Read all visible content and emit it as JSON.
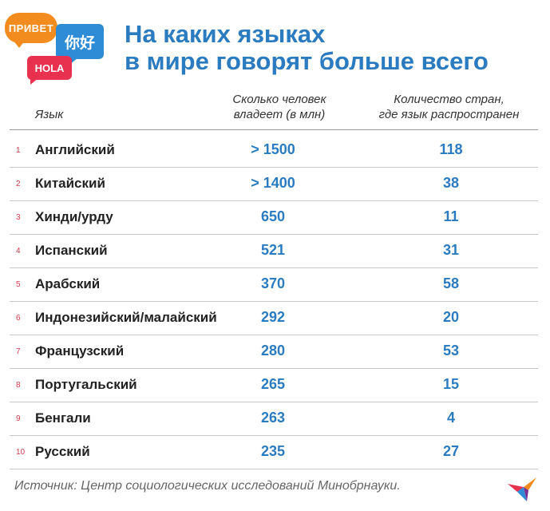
{
  "logo": {
    "privet": "ПРИВЕТ",
    "nihao": "你好",
    "hola": "HOLA"
  },
  "title_line1": "На каких языках",
  "title_line2": "в мире говорят больше всего",
  "headers": {
    "language": "Язык",
    "speakers_line1": "Сколько человек",
    "speakers_line2": "владеет (в млн)",
    "countries_line1": "Количество стран,",
    "countries_line2": "где язык распространен"
  },
  "rows": [
    {
      "rank": "1",
      "language": "Английский",
      "speakers": "> 1500",
      "countries": "118"
    },
    {
      "rank": "2",
      "language": "Китайский",
      "speakers": "> 1400",
      "countries": "38"
    },
    {
      "rank": "3",
      "language": "Хинди/урду",
      "speakers": "650",
      "countries": "11"
    },
    {
      "rank": "4",
      "language": "Испанский",
      "speakers": "521",
      "countries": "31"
    },
    {
      "rank": "5",
      "language": "Арабский",
      "speakers": "370",
      "countries": "58"
    },
    {
      "rank": "6",
      "language": "Индонезийский/малайский",
      "speakers": "292",
      "countries": "20"
    },
    {
      "rank": "7",
      "language": "Французский",
      "speakers": "280",
      "countries": "53"
    },
    {
      "rank": "8",
      "language": "Португальский",
      "speakers": "265",
      "countries": "15"
    },
    {
      "rank": "9",
      "language": "Бенгали",
      "speakers": "263",
      "countries": "4"
    },
    {
      "rank": "10",
      "language": "Русский",
      "speakers": "235",
      "countries": "27"
    }
  ],
  "source": "Источник: Центр социологических исследований Минобрнауки.",
  "colors": {
    "accent": "#2a7bbf",
    "rank": "#d23a4e",
    "orange": "#f28c1e",
    "red": "#e8314f"
  },
  "icons": {
    "logo": "speech-bubbles-logo",
    "brand": "kp-bird-icon"
  }
}
